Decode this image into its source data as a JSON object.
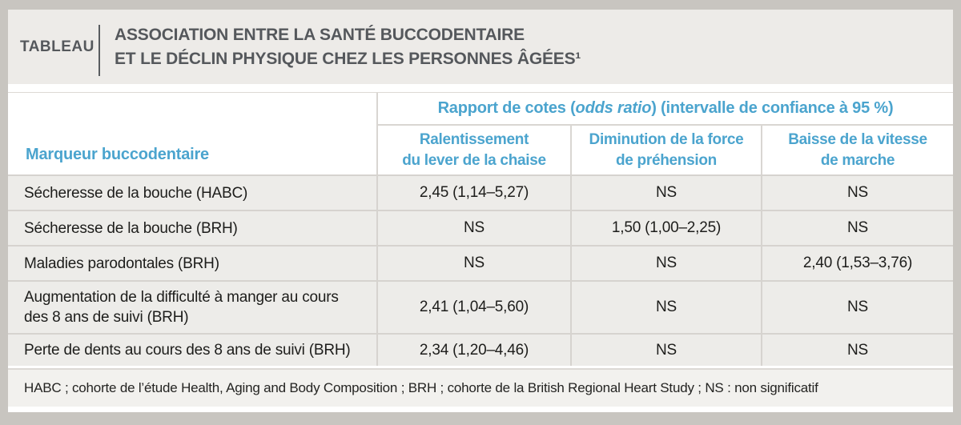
{
  "header": {
    "kicker": "TABLEAU",
    "title_line1": "ASSOCIATION ENTRE LA SANTÉ BUCCODENTAIRE",
    "title_line2": "ET LE DÉCLIN PHYSIQUE CHEZ LES PERSONNES ÂGÉES¹"
  },
  "table": {
    "row_header_label": "Marqueur buccodentaire",
    "group_header": {
      "prefix": "Rapport de cotes (",
      "italic": "odds ratio",
      "suffix": ") (intervalle de confiance à 95 %)"
    },
    "columns": [
      "Ralentissement\ndu lever de la chaise",
      "Diminution de la force\nde préhension",
      "Baisse de la vitesse\nde marche"
    ],
    "rows": [
      {
        "label": "Sécheresse de la bouche (HABC)",
        "values": [
          "2,45 (1,14–5,27)",
          "NS",
          "NS"
        ]
      },
      {
        "label": "Sécheresse de la bouche (BRH)",
        "values": [
          "NS",
          "1,50 (1,00–2,25)",
          "NS"
        ]
      },
      {
        "label": "Maladies parodontales (BRH)",
        "values": [
          "NS",
          "NS",
          "2,40 (1,53–3,76)"
        ]
      },
      {
        "label": "Augmentation de la difficulté à manger au cours\ndes 8 ans de suivi (BRH)",
        "values": [
          "2,41 (1,04–5,60)",
          "NS",
          "NS"
        ]
      },
      {
        "label": "Perte de dents au cours des 8 ans de suivi (BRH)",
        "values": [
          "2,34 (1,20–4,46)",
          "NS",
          "NS"
        ]
      }
    ],
    "footnote": "HABC ; cohorte de l’étude Health, Aging and Body Composition ; BRH ; cohorte de la British Regional Heart Study ; NS : non significatif"
  },
  "colors": {
    "accent_blue": "#4ba4ce",
    "frame_gray": "#c8c5c0",
    "title_band_gray": "#edebe8",
    "row_gray": "#edece9",
    "divider_gray": "#d6d3cf",
    "title_text": "#55585c",
    "body_text": "#1d1d1b"
  }
}
